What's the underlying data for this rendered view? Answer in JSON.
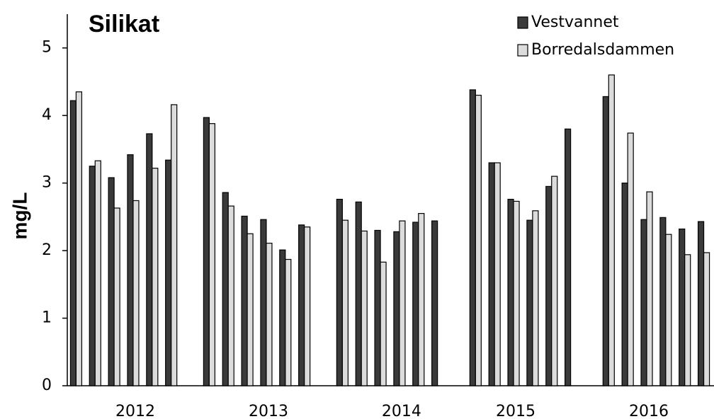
{
  "chart_data": {
    "type": "bar",
    "title": "Silikat",
    "y_label": "mg/L",
    "categories": [
      null,
      null,
      null,
      "2012",
      null,
      null,
      null,
      null,
      null,
      null,
      "2013",
      null,
      null,
      null,
      null,
      null,
      null,
      "2014",
      null,
      null,
      null,
      null,
      null,
      "2015",
      null,
      null,
      null,
      null,
      null,
      null,
      "2016",
      null,
      null,
      null
    ],
    "series": [
      {
        "name": "Vestvannet",
        "color": "#3a3a3a",
        "values": [
          4.22,
          3.25,
          3.08,
          3.42,
          3.73,
          3.34,
          null,
          3.97,
          2.86,
          2.51,
          2.46,
          2.01,
          2.38,
          null,
          2.76,
          2.72,
          2.3,
          2.28,
          2.42,
          2.44,
          null,
          4.38,
          3.3,
          2.76,
          2.45,
          2.95,
          3.8,
          null,
          4.28,
          3.0,
          2.46,
          2.49,
          2.32,
          2.43
        ]
      },
      {
        "name": "Borredalsdammen",
        "color": "#dcdcdc",
        "values": [
          4.35,
          3.33,
          2.63,
          2.74,
          3.22,
          4.16,
          null,
          3.88,
          2.66,
          2.25,
          2.11,
          1.87,
          2.35,
          null,
          2.45,
          2.29,
          1.83,
          2.44,
          2.55,
          null,
          null,
          4.3,
          3.3,
          2.73,
          2.59,
          3.1,
          null,
          null,
          4.6,
          3.74,
          2.87,
          2.24,
          1.94,
          1.97
        ]
      }
    ],
    "ylim": [
      0,
      5.5
    ],
    "yticks": [
      0,
      1,
      2,
      3,
      4,
      5
    ],
    "legend": "top-right"
  }
}
